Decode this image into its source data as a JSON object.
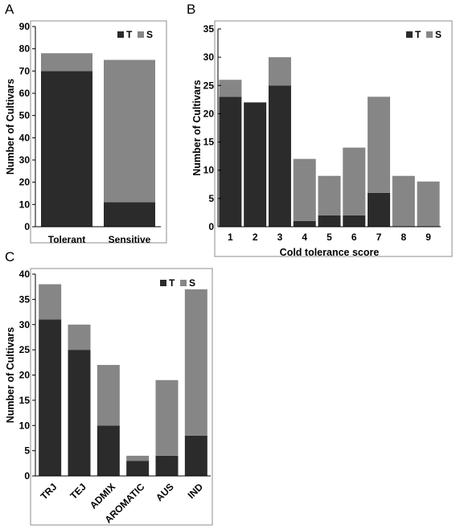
{
  "colors": {
    "T": "#2b2b2b",
    "S": "#868686",
    "frame": "#8c8c8c",
    "axis": "#000000"
  },
  "chart_data": [
    {
      "panel": "A",
      "type": "bar",
      "stacked": true,
      "categories": [
        "Tolerant",
        "Sensitive"
      ],
      "series": [
        {
          "name": "T",
          "values": [
            70,
            11
          ]
        },
        {
          "name": "S",
          "values": [
            8,
            64
          ]
        }
      ],
      "xlabel": "",
      "ylabel": "Number of Cultivars",
      "ylim": [
        0,
        90
      ],
      "yticks": [
        0,
        10,
        20,
        30,
        40,
        50,
        60,
        70,
        80,
        90
      ],
      "legend": "top-right",
      "grid": false
    },
    {
      "panel": "B",
      "type": "bar",
      "stacked": true,
      "categories": [
        "1",
        "2",
        "3",
        "4",
        "5",
        "6",
        "7",
        "8",
        "9"
      ],
      "series": [
        {
          "name": "T",
          "values": [
            23,
            22,
            25,
            1,
            2,
            2,
            6,
            0,
            0
          ]
        },
        {
          "name": "S",
          "values": [
            3,
            0,
            5,
            11,
            7,
            12,
            17,
            9,
            8
          ]
        }
      ],
      "xlabel": "Cold tolerance score",
      "ylabel": "Number of Cultivars",
      "ylim": [
        0,
        35
      ],
      "yticks": [
        0,
        5,
        10,
        15,
        20,
        25,
        30,
        35
      ],
      "legend": "top-right",
      "grid": false
    },
    {
      "panel": "C",
      "type": "bar",
      "stacked": true,
      "categories": [
        "TRJ",
        "TEJ",
        "ADMIX",
        "AROMATIC",
        "AUS",
        "IND"
      ],
      "series": [
        {
          "name": "T",
          "values": [
            31,
            25,
            10,
            3,
            4,
            8
          ]
        },
        {
          "name": "S",
          "values": [
            7,
            5,
            12,
            1,
            15,
            29
          ]
        }
      ],
      "xlabel": "",
      "ylabel": "Number of Cultivars",
      "ylim": [
        0,
        40
      ],
      "yticks": [
        0,
        5,
        10,
        15,
        20,
        25,
        30,
        35,
        40
      ],
      "legend": "top-right",
      "grid": false
    }
  ]
}
